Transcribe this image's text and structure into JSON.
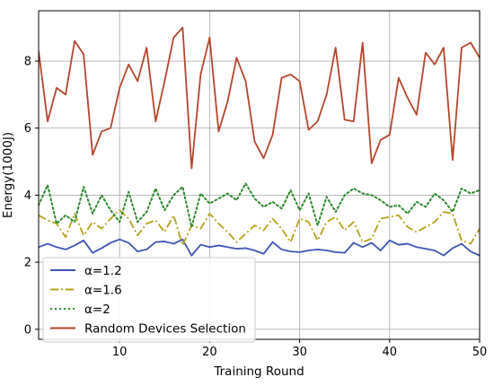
{
  "chart_data": {
    "type": "line",
    "title": "",
    "xlabel": "Training Round",
    "ylabel": "Energy(1000J)",
    "xlim": [
      1,
      50
    ],
    "ylim": [
      -0.3,
      9.5
    ],
    "xticks": [
      10,
      20,
      30,
      40,
      50
    ],
    "yticks": [
      0,
      2,
      4,
      6,
      8
    ],
    "grid": true,
    "legend_position": "lower-left",
    "x": [
      1,
      2,
      3,
      4,
      5,
      6,
      7,
      8,
      9,
      10,
      11,
      12,
      13,
      14,
      15,
      16,
      17,
      18,
      19,
      20,
      21,
      22,
      23,
      24,
      25,
      26,
      27,
      28,
      29,
      30,
      31,
      32,
      33,
      34,
      35,
      36,
      37,
      38,
      39,
      40,
      41,
      42,
      43,
      44,
      45,
      46,
      47,
      48,
      49,
      50
    ],
    "series": [
      {
        "name": "α=1.2",
        "color": "#3c55b5",
        "style": "solid",
        "values": [
          2.45,
          2.55,
          2.45,
          2.38,
          2.5,
          2.65,
          2.28,
          2.42,
          2.58,
          2.68,
          2.58,
          2.32,
          2.38,
          2.6,
          2.62,
          2.55,
          2.68,
          2.2,
          2.52,
          2.45,
          2.5,
          2.45,
          2.4,
          2.42,
          2.35,
          2.25,
          2.6,
          2.38,
          2.32,
          2.3,
          2.35,
          2.38,
          2.35,
          2.3,
          2.28,
          2.58,
          2.45,
          2.58,
          2.35,
          2.65,
          2.52,
          2.55,
          2.45,
          2.4,
          2.35,
          2.2,
          2.42,
          2.55,
          2.32,
          2.2
        ]
      },
      {
        "name": "α=1.6",
        "color": "#b5a019",
        "style": "dashdot",
        "values": [
          3.4,
          3.25,
          3.15,
          2.75,
          3.45,
          2.8,
          3.2,
          3.0,
          3.3,
          3.55,
          3.3,
          2.8,
          3.15,
          3.25,
          2.9,
          3.4,
          2.5,
          3.1,
          3.0,
          3.45,
          3.15,
          2.9,
          2.6,
          2.85,
          3.1,
          2.95,
          3.3,
          3.0,
          2.6,
          3.3,
          3.2,
          2.65,
          3.2,
          3.35,
          2.95,
          3.2,
          2.6,
          2.7,
          3.3,
          3.35,
          3.4,
          3.05,
          2.9,
          3.05,
          3.2,
          3.5,
          3.45,
          2.65,
          2.55,
          3.0
        ]
      },
      {
        "name": "α=2",
        "color": "#2a8a2a",
        "style": "dotted",
        "values": [
          3.7,
          4.3,
          3.15,
          3.4,
          3.2,
          4.25,
          3.45,
          4.0,
          3.55,
          3.2,
          4.1,
          3.2,
          3.5,
          4.2,
          3.55,
          4.0,
          4.25,
          3.05,
          4.05,
          3.75,
          3.9,
          4.05,
          3.85,
          4.35,
          3.9,
          3.65,
          3.8,
          3.6,
          4.15,
          3.55,
          4.05,
          3.1,
          3.95,
          3.5,
          4.0,
          4.2,
          4.05,
          4.0,
          3.85,
          3.65,
          3.7,
          3.45,
          3.8,
          3.65,
          4.05,
          3.85,
          3.5,
          4.2,
          4.05,
          4.15
        ]
      },
      {
        "name": "Random Devices Selection",
        "color": "#b5452a",
        "style": "solid",
        "values": [
          8.3,
          6.2,
          7.2,
          7.0,
          8.6,
          8.2,
          5.2,
          5.9,
          6.0,
          7.2,
          7.9,
          7.4,
          8.4,
          6.2,
          7.4,
          8.7,
          9.0,
          4.8,
          7.6,
          8.7,
          5.9,
          6.8,
          8.1,
          7.4,
          5.6,
          5.1,
          5.8,
          7.5,
          7.6,
          7.4,
          5.95,
          6.2,
          7.0,
          8.4,
          6.25,
          6.2,
          8.55,
          4.95,
          5.65,
          5.8,
          7.5,
          6.9,
          6.4,
          8.25,
          7.9,
          8.4,
          5.05,
          8.4,
          8.55,
          8.1
        ]
      }
    ]
  }
}
